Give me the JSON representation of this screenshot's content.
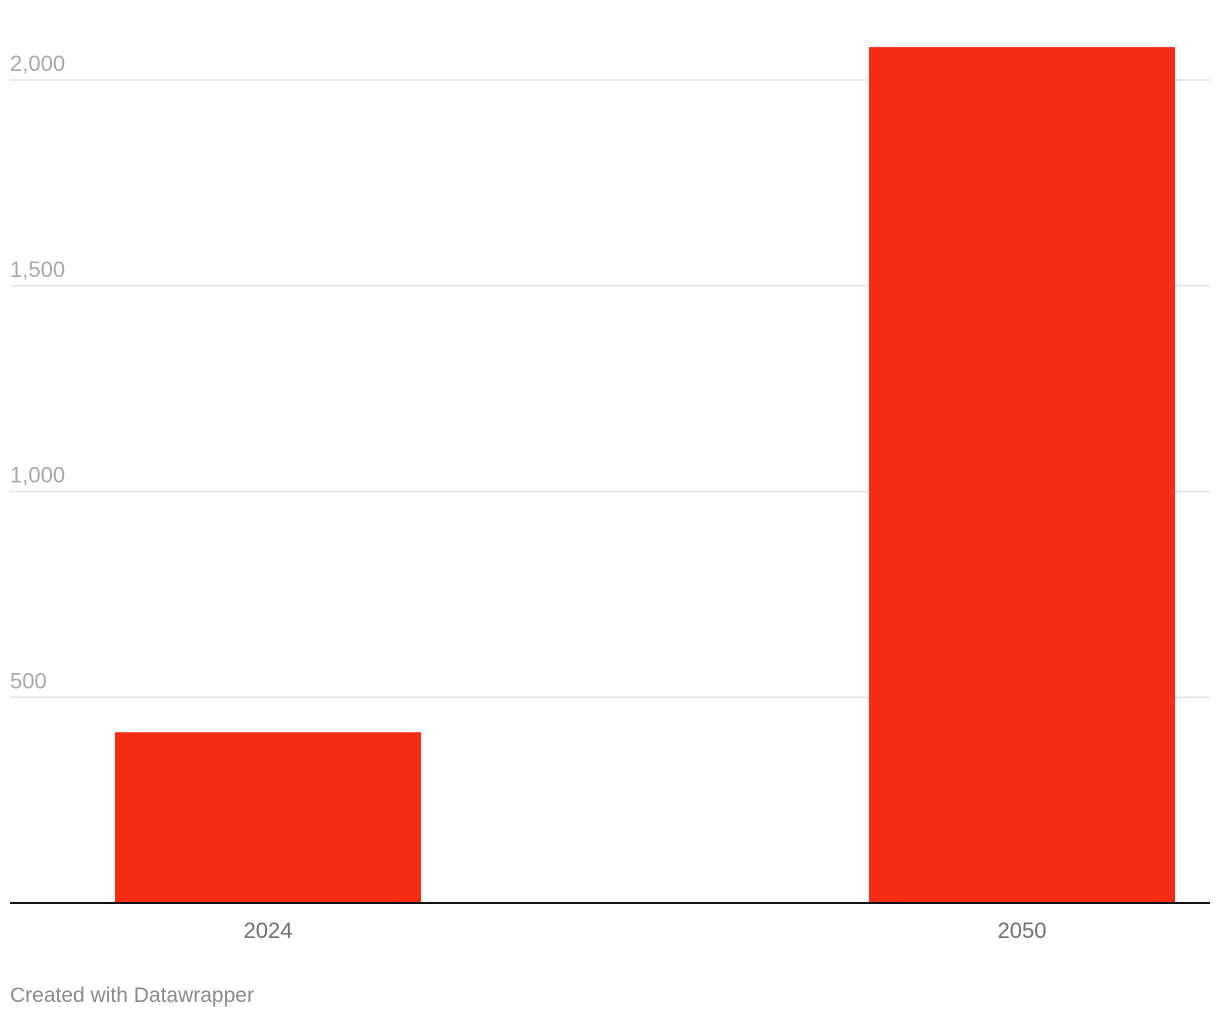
{
  "chart_data": {
    "type": "bar",
    "categories": [
      "2024",
      "2050"
    ],
    "values": [
      415,
      2080
    ],
    "ylim": [
      0,
      2000
    ],
    "yticks": [
      500,
      1000,
      1500,
      2000
    ],
    "ytick_labels": [
      "500",
      "1,000",
      "1,500",
      "2,000"
    ],
    "grid": true,
    "legend": "none",
    "bar_color": "#f72c15"
  },
  "footer": {
    "credit": "Created with Datawrapper"
  }
}
